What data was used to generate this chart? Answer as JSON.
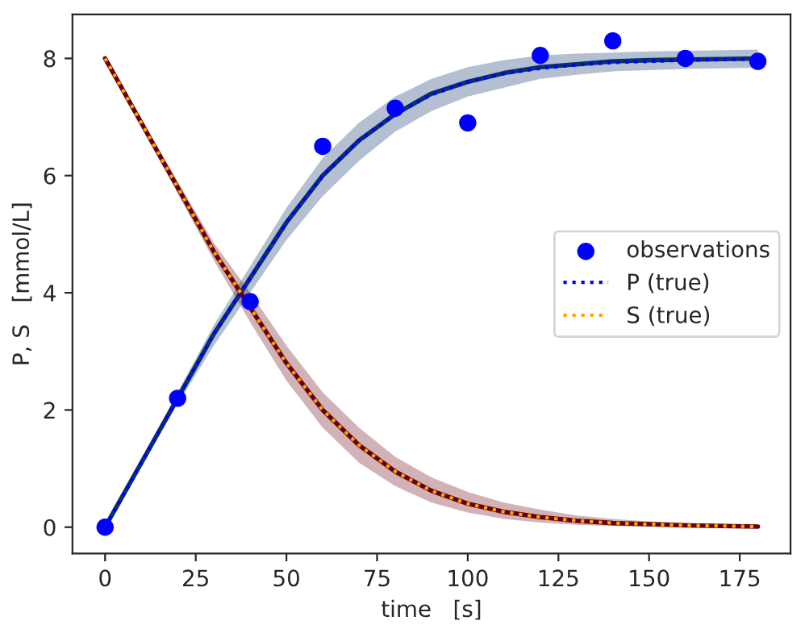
{
  "chart_data": {
    "type": "line",
    "xlabel": "time   [s]",
    "ylabel": "P, S   [mmol/L]",
    "xlim": [
      -9,
      189
    ],
    "ylim": [
      -0.45,
      8.75
    ],
    "xticks": [
      0,
      25,
      50,
      75,
      100,
      125,
      150,
      175
    ],
    "yticks": [
      0,
      2,
      4,
      6,
      8
    ],
    "grid": false,
    "legend": "right",
    "series": [
      {
        "color": "#08306b",
        "x": [
          0,
          10,
          20,
          30,
          40,
          50,
          60,
          70,
          80,
          90,
          100,
          110,
          120,
          130,
          140,
          150,
          160,
          170,
          180
        ],
        "values": [
          0,
          1.1,
          2.2,
          3.3,
          4.25,
          5.2,
          6.0,
          6.6,
          7.05,
          7.4,
          7.6,
          7.75,
          7.85,
          7.9,
          7.95,
          7.97,
          7.98,
          7.99,
          8.0
        ],
        "lower": [
          0,
          1.05,
          2.1,
          3.1,
          4.0,
          4.9,
          5.65,
          6.25,
          6.75,
          7.1,
          7.35,
          7.5,
          7.65,
          7.72,
          7.78,
          7.8,
          7.82,
          7.83,
          7.84
        ],
        "upper": [
          0,
          1.15,
          2.3,
          3.45,
          4.45,
          5.45,
          6.3,
          6.9,
          7.35,
          7.65,
          7.85,
          7.97,
          8.05,
          8.08,
          8.1,
          8.12,
          8.13,
          8.14,
          8.15
        ]
      },
      {
        "color": "#67000d",
        "x": [
          0,
          10,
          20,
          30,
          40,
          50,
          60,
          70,
          80,
          90,
          100,
          110,
          120,
          130,
          140,
          150,
          160,
          170,
          180
        ],
        "values": [
          8,
          6.9,
          5.8,
          4.7,
          3.75,
          2.8,
          2.0,
          1.4,
          0.95,
          0.62,
          0.4,
          0.26,
          0.17,
          0.11,
          0.07,
          0.05,
          0.03,
          0.02,
          0.01
        ],
        "lower": [
          8,
          6.85,
          5.7,
          4.55,
          3.5,
          2.5,
          1.7,
          1.1,
          0.7,
          0.42,
          0.25,
          0.14,
          0.08,
          0.04,
          0.02,
          0.01,
          0.0,
          0.0,
          0.0
        ],
        "upper": [
          8,
          6.95,
          5.9,
          4.85,
          4.0,
          3.1,
          2.3,
          1.7,
          1.2,
          0.85,
          0.6,
          0.42,
          0.3,
          0.2,
          0.14,
          0.1,
          0.07,
          0.05,
          0.04
        ]
      },
      {
        "type": "scatter",
        "name": "observations",
        "color": "#0000ff",
        "marker": "circle",
        "x": [
          0,
          20,
          40,
          60,
          80,
          100,
          120,
          140,
          160,
          180
        ],
        "values": [
          0,
          2.2,
          3.85,
          6.5,
          7.15,
          6.9,
          8.05,
          8.3,
          8.0,
          7.95
        ]
      },
      {
        "name": "P (true)",
        "color": "#0000ff",
        "line_style": "dotted",
        "x": [
          0,
          10,
          20,
          30,
          40,
          50,
          60,
          70,
          80,
          90,
          100,
          110,
          120,
          130,
          140,
          150,
          160,
          170,
          180
        ],
        "values": [
          0,
          1.1,
          2.2,
          3.3,
          4.25,
          5.2,
          6.0,
          6.6,
          7.05,
          7.38,
          7.6,
          7.74,
          7.83,
          7.89,
          7.93,
          7.95,
          7.97,
          7.98,
          7.99
        ]
      },
      {
        "name": "S (true)",
        "color": "#ffa500",
        "line_style": "dotted",
        "x": [
          0,
          10,
          20,
          30,
          40,
          50,
          60,
          70,
          80,
          90,
          100,
          110,
          120,
          130,
          140,
          150,
          160,
          170,
          180
        ],
        "values": [
          8,
          6.9,
          5.8,
          4.7,
          3.75,
          2.8,
          2.0,
          1.4,
          0.95,
          0.62,
          0.4,
          0.26,
          0.17,
          0.11,
          0.07,
          0.05,
          0.03,
          0.02,
          0.01
        ]
      }
    ]
  }
}
